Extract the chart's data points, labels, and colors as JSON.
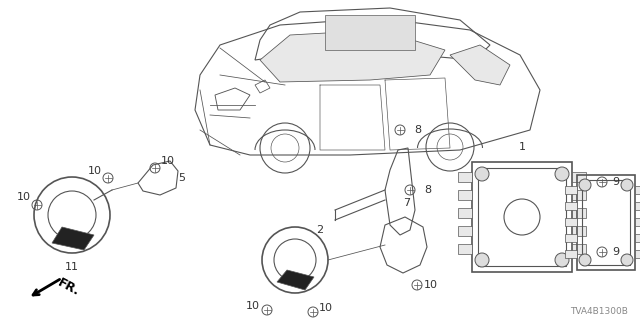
{
  "bg_color": "#ffffff",
  "diagram_code": "TVA4B1300B",
  "line_color": "#555555",
  "dark_color": "#333333",
  "figsize": [
    6.4,
    3.2
  ],
  "dpi": 100
}
